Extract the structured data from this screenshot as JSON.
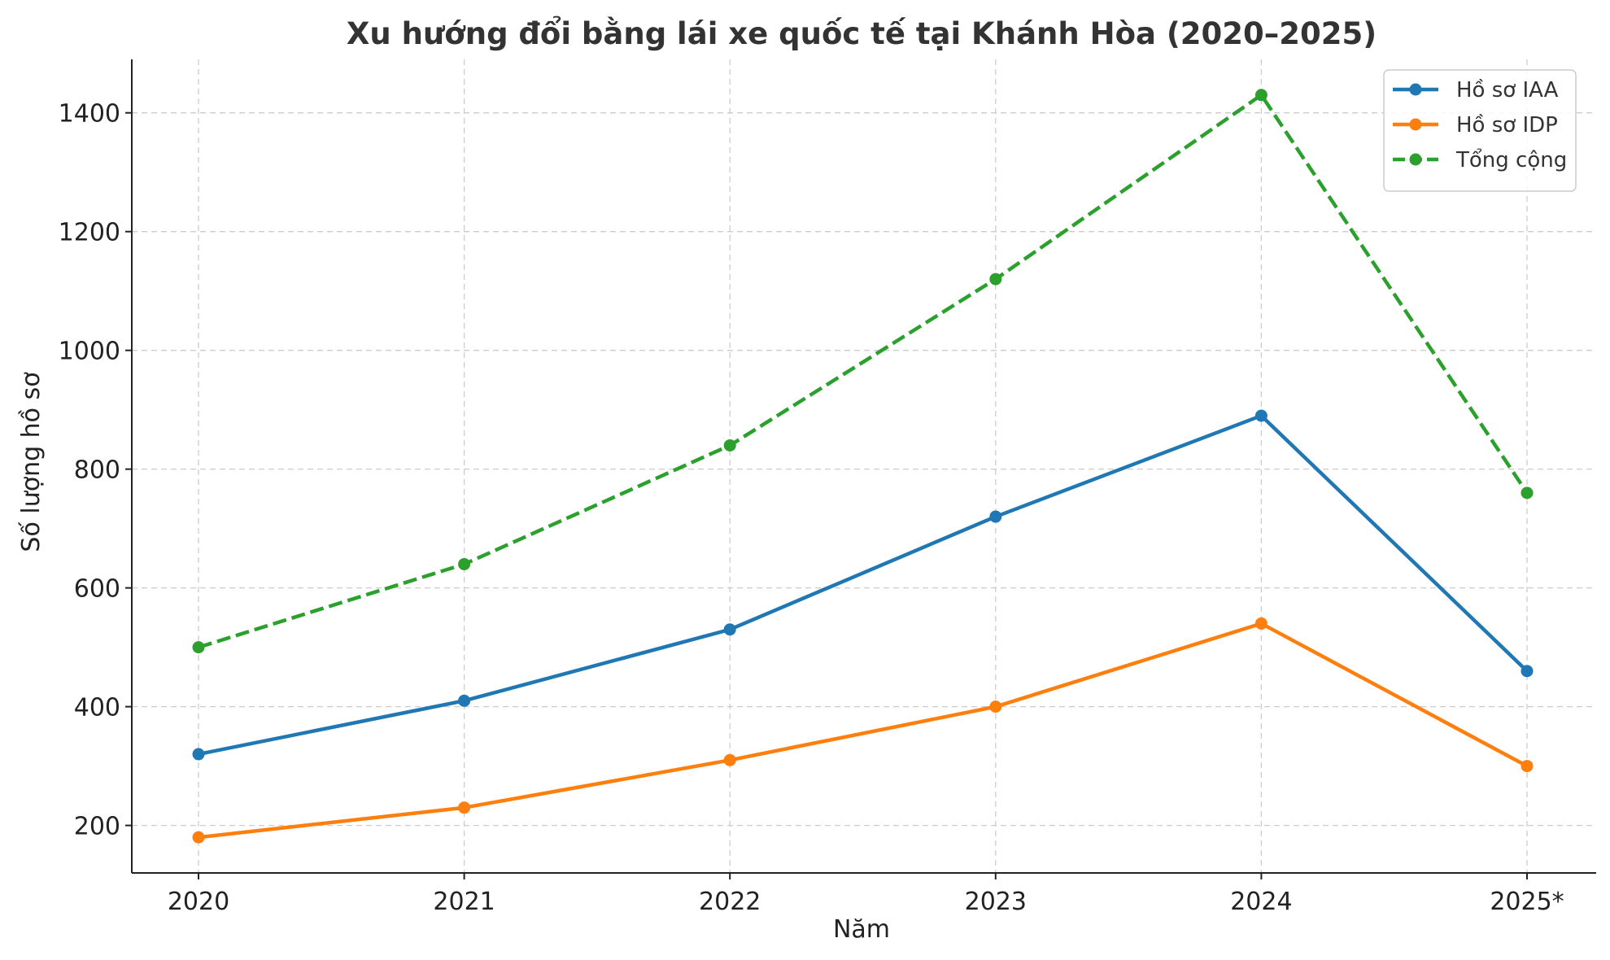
{
  "chart_data": {
    "type": "line",
    "title": "Xu hướng đổi bằng lái xe quốc tế tại Khánh Hòa (2020–2025)",
    "xlabel": "Năm",
    "ylabel": "Số lượng hồ sơ",
    "categories": [
      "2020",
      "2021",
      "2022",
      "2023",
      "2024",
      "2025*"
    ],
    "ylim": [
      120,
      1490
    ],
    "yticks": [
      200,
      400,
      600,
      800,
      1000,
      1200,
      1400
    ],
    "grid": true,
    "legend_position": "top-right",
    "series": [
      {
        "name": "Hồ sơ IAA",
        "color": "#1f77b4",
        "style": "solid",
        "values": [
          320,
          410,
          530,
          720,
          890,
          460
        ]
      },
      {
        "name": "Hồ sơ IDP",
        "color": "#ff7f0e",
        "style": "solid",
        "values": [
          180,
          230,
          310,
          400,
          540,
          300
        ]
      },
      {
        "name": "Tổng cộng",
        "color": "#2ca02c",
        "style": "dashed",
        "values": [
          500,
          640,
          840,
          1120,
          1430,
          760
        ]
      }
    ]
  }
}
